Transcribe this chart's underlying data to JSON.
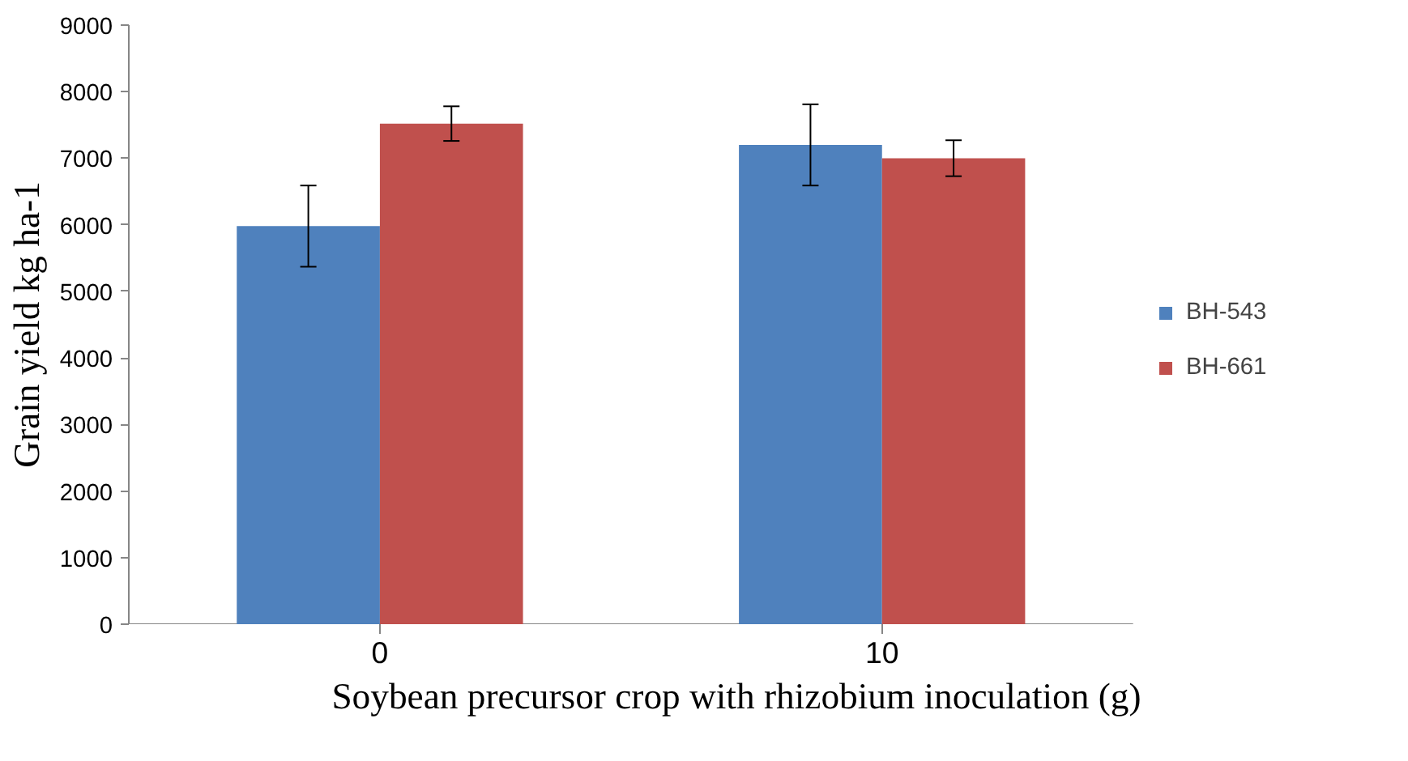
{
  "chart_data": {
    "type": "bar",
    "xlabel": "Soybean precursor crop with rhizobium inoculation (g)",
    "ylabel": "Grain yield kg ha-1",
    "categories": [
      "0",
      "10"
    ],
    "series": [
      {
        "name": "BH-543",
        "color": "#4f81bd",
        "values": [
          5980,
          7200
        ],
        "errors": [
          610,
          610
        ]
      },
      {
        "name": "BH-661",
        "color": "#c0504d",
        "values": [
          7520,
          7000
        ],
        "errors": [
          260,
          270
        ]
      }
    ],
    "ylim": [
      0,
      9000
    ],
    "yticks": [
      0,
      1000,
      2000,
      3000,
      4000,
      5000,
      6000,
      7000,
      8000,
      9000
    ],
    "grid": false,
    "legend": "right"
  }
}
